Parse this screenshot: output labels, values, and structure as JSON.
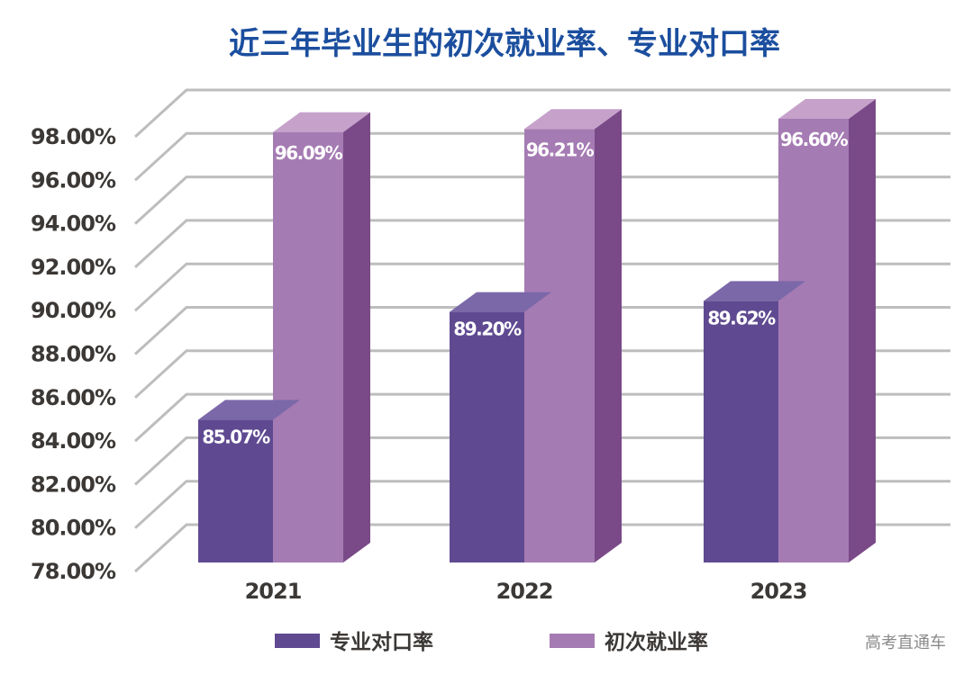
{
  "chart_data": {
    "type": "bar",
    "title": "近三年毕业生的初次就业率、专业对口率",
    "categories": [
      "2021",
      "2022",
      "2023"
    ],
    "series": [
      {
        "name": "专业对口率",
        "values": [
          85.07,
          89.2,
          89.62
        ],
        "labels": [
          "85.07%",
          "89.20%",
          "89.62%"
        ],
        "color": "#5f4a91",
        "top_color": "#7b68a9"
      },
      {
        "name": "初次就业率",
        "values": [
          96.09,
          96.21,
          96.6
        ],
        "labels": [
          "96.09%",
          "96.21%",
          "96.60%"
        ],
        "color": "#a57bb3",
        "top_color": "#c6a2cb",
        "side_color": "#7a4a88"
      }
    ],
    "yticks": [
      "78.00%",
      "80.00%",
      "82.00%",
      "84.00%",
      "86.00%",
      "88.00%",
      "90.00%",
      "92.00%",
      "94.00%",
      "96.00%",
      "98.00%"
    ],
    "ylim": [
      78,
      98
    ],
    "xlabel": "",
    "ylabel": "",
    "grid": true,
    "legend_position": "bottom",
    "style": "3d-column"
  },
  "watermark": "高考直通车"
}
